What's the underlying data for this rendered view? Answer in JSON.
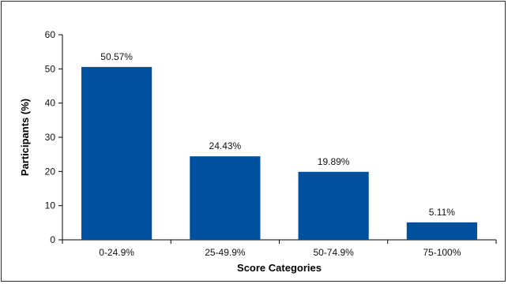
{
  "chart_data": {
    "type": "bar",
    "title": "",
    "xlabel": "Score Categories",
    "ylabel": "Participants (%)",
    "categories": [
      "0-24.9%",
      "25-49.9%",
      "50-74.9%",
      "75-100%"
    ],
    "values": [
      50.57,
      24.43,
      19.89,
      5.11
    ],
    "value_labels": [
      "50.57%",
      "24.43%",
      "19.89%",
      "5.11%"
    ],
    "ylim": [
      0,
      60
    ],
    "yticks": [
      0,
      10,
      20,
      30,
      40,
      50,
      60
    ],
    "grid": false,
    "legend": "none",
    "bar_color": "#0050A0"
  }
}
